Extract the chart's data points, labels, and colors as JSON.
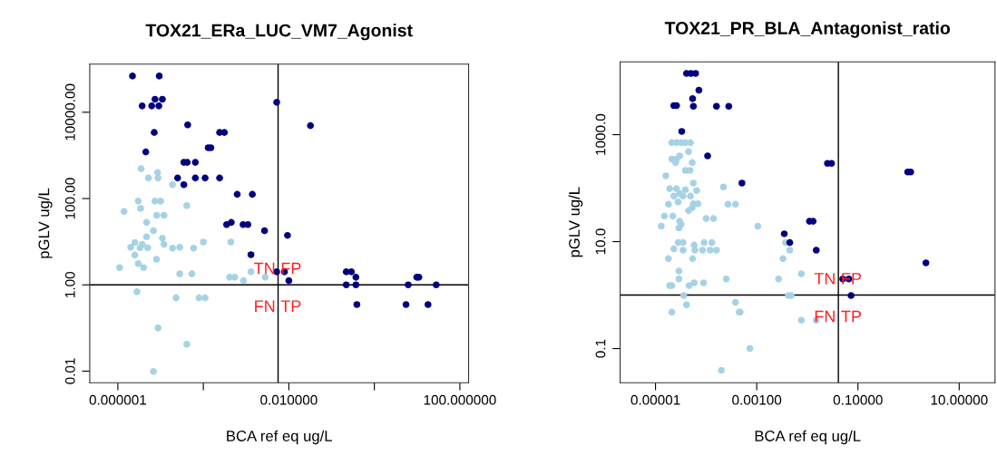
{
  "chart_data": [
    {
      "type": "scatter",
      "title": "TOX21_ERa_LUC_VM7_Agonist",
      "xlabel": "BCA ref eq ug/L",
      "ylabel": "pGLV ug/L",
      "log": "xy",
      "grid": false,
      "marker": "circle",
      "xlim": [
        2.2e-07,
        160
      ],
      "ylim": [
        0.0054,
        130000
      ],
      "xticks": [
        {
          "value": 1e-06,
          "label": "0.000001"
        },
        {
          "value": 0.0001,
          "label": null
        },
        {
          "value": 0.01,
          "label": "0.010000"
        },
        {
          "value": 1,
          "label": null
        },
        {
          "value": 100,
          "label": "100.000000"
        }
      ],
      "yticks": [
        {
          "value": 0.01,
          "label": "0.01"
        },
        {
          "value": 1,
          "label": "1.00"
        },
        {
          "value": 100,
          "label": "100.00"
        },
        {
          "value": 10000,
          "label": "10000.00"
        }
      ],
      "ref_lines": [
        {
          "axis": "x",
          "value": 0.0056,
          "color": "#000000"
        },
        {
          "axis": "y",
          "value": 1,
          "color": "#000000"
        }
      ],
      "annotations": [
        "TN",
        "FP",
        "FN",
        "TP"
      ],
      "series": [
        {
          "color": "#a6d2e6",
          "x": [
            3.5e-06,
            8.5e-06,
            5.2e-06,
            8.7e-06,
            1.9e-05,
            3e-06,
            7.4e-06,
            1e-05,
            1.4e-06,
            3.4e-06,
            4.1e-05,
            8.1e-06,
            1.2e-05,
            4.7e-06,
            6.8e-06,
            4.7e-06,
            1.1e-05,
            2.5e-06,
            2e-06,
            3.7e-06,
            3.3e-06,
            5e-06,
            1.2e-05,
            1.9e-05,
            2.8e-05,
            5.9e-05,
            0.0001,
            0.00044,
            2.5e-06,
            8e-06,
            3e-06,
            4e-06,
            1.1e-06,
            2.8e-05,
            5.4e-05,
            0.00041,
            0.00054,
            0.00087,
            0.0013,
            0.0028,
            2.8e-06,
            2.3e-05,
            7.9e-05,
            0.00011,
            8.7e-06,
            4.1e-05,
            6.8e-06
          ],
          "values": [
            490,
            400,
            300,
            300,
            210,
            87,
            87,
            87,
            50,
            59,
            69,
            41,
            41,
            28,
            18,
            13,
            12,
            9.6,
            7.4,
            8.7,
            7.2,
            7.2,
            8.7,
            7.1,
            7.4,
            7.1,
            9.8,
            9.8,
            4.9,
            3.9,
            3.1,
            2.5,
            2.5,
            1.8,
            1.8,
            1.5,
            1.5,
            1.25,
            2.0,
            1.5,
            0.69,
            0.5,
            0.5,
            0.5,
            0.1,
            0.042,
            0.0098
          ]
        },
        {
          "color": "#000080",
          "x": [
            2.2e-06,
            9.3e-06,
            7.4e-06,
            1.1e-05,
            3.7e-06,
            6.2e-06,
            9.1e-06,
            0.0052,
            0.032,
            4.3e-05,
            7.1e-06,
            0.00024,
            0.00031,
            4.5e-06,
            0.00013,
            0.00015,
            3.5e-05,
            4.2e-05,
            6.5e-05,
            2.5e-05,
            6.5e-05,
            0.00011,
            0.00024,
            3.5e-05,
            0.00062,
            0.0014,
            0.00035,
            0.00045,
            0.00085,
            0.0011,
            0.0027,
            0.0093,
            0.0013,
            0.0052,
            0.0079,
            0.01,
            0.22,
            0.29,
            0.37,
            0.22,
            0.37,
            0.39,
            9.8,
            11,
            6.2,
            28,
            5.5,
            18
          ],
          "values": [
            69000,
            69000,
            20000,
            20000,
            14000,
            14000,
            14000,
            17000,
            4900,
            5100,
            3400,
            3400,
            3400,
            1200,
            1500,
            1500,
            690,
            690,
            690,
            300,
            300,
            300,
            300,
            210,
            125,
            125,
            25,
            28,
            25,
            25,
            18,
            14,
            5.0,
            2.0,
            2.0,
            1.25,
            2.0,
            2.0,
            1.5,
            1.0,
            1.0,
            0.35,
            1.5,
            1.5,
            1.0,
            1.0,
            0.35,
            0.35
          ]
        }
      ]
    },
    {
      "type": "scatter",
      "title": "TOX21_PR_BLA_Antagonist_ratio",
      "xlabel": "BCA ref eq ug/L",
      "ylabel": "pGLV ug/L",
      "log": "xy",
      "grid": false,
      "marker": "circle",
      "xlim": [
        2e-06,
        51
      ],
      "ylim": [
        0.023,
        23000
      ],
      "xticks": [
        {
          "value": 1e-05,
          "label": "0.00001"
        },
        {
          "value": 0.001,
          "label": "0.00100"
        },
        {
          "value": 0.1,
          "label": "0.10000"
        },
        {
          "value": 10,
          "label": "10.00000"
        }
      ],
      "yticks": [
        {
          "value": 0.1,
          "label": "0.1"
        },
        {
          "value": 10,
          "label": "10.0"
        },
        {
          "value": 1000,
          "label": "1000.0"
        }
      ],
      "ref_lines": [
        {
          "axis": "x",
          "value": 0.041,
          "color": "#000000"
        },
        {
          "axis": "y",
          "value": 1,
          "color": "#000000"
        }
      ],
      "annotations": [
        "TN",
        "FP",
        "FN",
        "TP"
      ],
      "series": [
        {
          "color": "#a6d2e6",
          "x": [
            2.1e-05,
            2.6e-05,
            3.2e-05,
            3.9e-05,
            4.9e-05,
            4.5e-05,
            2.1e-05,
            2.6e-05,
            3e-05,
            2.5e-05,
            5.3e-05,
            3.9e-05,
            4.8e-05,
            1.6e-05,
            5.6e-05,
            0.00022,
            1.9e-05,
            2.6e-05,
            3.9e-05,
            3e-05,
            4.9e-05,
            6.5e-05,
            2.3e-05,
            3.5e-05,
            2.8e-05,
            1.8e-05,
            5.6e-05,
            6.9e-05,
            4.5e-05,
            5.3e-05,
            0.00027,
            0.00038,
            1.5e-05,
            2.2e-05,
            0.0001,
            0.00014,
            3e-05,
            2.9e-05,
            3.2e-05,
            1.3e-05,
            0.00105,
            2.8e-05,
            3.5e-05,
            5.8e-05,
            9.1e-05,
            0.00013,
            2.3e-05,
            3.5e-05,
            6e-05,
            8.5e-05,
            0.00012,
            0.00016,
            1.8e-05,
            5.4e-05,
            2.9e-05,
            2.9e-05,
            1.9e-05,
            2.1e-05,
            4.6e-05,
            5.8e-05,
            8.9e-05,
            0.00025,
            0.0027,
            3.6e-05,
            4.1e-05,
            0.00038,
            0.00047,
            0.00045,
            2.1e-05,
            0.00073,
            0.0002,
            0.0037,
            0.0045,
            0.0033,
            0.0076,
            0.0042,
            0.0048,
            0.0076,
            0.015
          ],
          "values": [
            710,
            710,
            710,
            710,
            710,
            480,
            350,
            350,
            400,
            300,
            300,
            215,
            215,
            170,
            124,
            105,
            98,
            98,
            93,
            79,
            71,
            90,
            71,
            71,
            55,
            50,
            51,
            51,
            38,
            43,
            50,
            50,
            30,
            30,
            27,
            27,
            24,
            18,
            21,
            19.5,
            19.5,
            9.6,
            9.6,
            8.6,
            9.6,
            9.6,
            7.3,
            6.9,
            6.9,
            6.9,
            6.9,
            6.9,
            4.8,
            4.8,
            2.8,
            2.0,
            1.5,
            1.5,
            1.5,
            1.7,
            1.7,
            2.0,
            2.0,
            0.98,
            0.66,
            0.73,
            0.48,
            0.48,
            0.48,
            0.1,
            0.039,
            9.6,
            6.9,
            4.8,
            2.5,
            0.98,
            0.98,
            0.34,
            0.34
          ]
        },
        {
          "color": "#000080",
          "x": [
            4.1e-05,
            5e-05,
            6.2e-05,
            7.2e-05,
            5.4e-05,
            5.6e-05,
            2.3e-05,
            2.6e-05,
            0.00016,
            0.00028,
            3.3e-05,
            0.000107,
            0.00051,
            0.0035,
            0.0045,
            0.025,
            0.03,
            0.011,
            0.013,
            0.015,
            0.96,
            1.1,
            2.2,
            0.05,
            0.066,
            0.073
          ],
          "values": [
            14000,
            14000,
            14000,
            6800,
            4700,
            3400,
            3500,
            3500,
            3400,
            3400,
            1150,
            400,
            124,
            14,
            9.6,
            290,
            290,
            24,
            24,
            6.9,
            200,
            200,
            4.0,
            2.0,
            2.0,
            0.98
          ]
        }
      ]
    }
  ]
}
